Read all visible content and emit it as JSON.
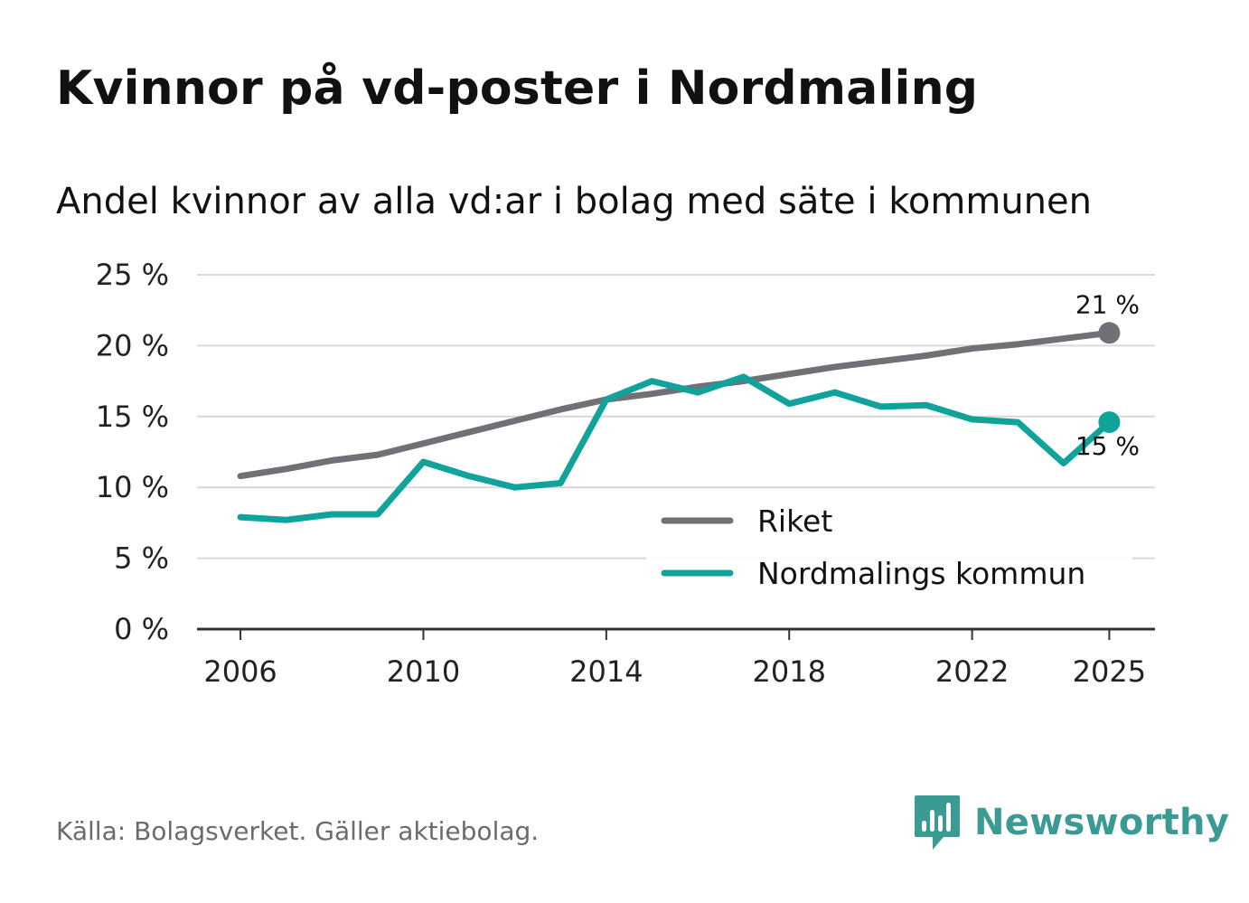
{
  "header": {
    "title": "Kvinnor på vd-poster i Nordmaling",
    "subtitle": "Andel kvinnor av alla vd:ar i bolag med säte i kommunen"
  },
  "footer": {
    "source": "Källa: Bolagsverket. Gäller aktiebolag.",
    "brand": "Newsworthy"
  },
  "colors": {
    "riket": "#707076",
    "kommun": "#10a39b",
    "grid": "#d9d9d9",
    "axis": "#333333",
    "brand": "#3a9a94"
  },
  "chart_data": {
    "type": "line",
    "title": "Kvinnor på vd-poster i Nordmaling",
    "subtitle": "Andel kvinnor av alla vd:ar i bolag med säte i kommunen",
    "xlabel": "",
    "ylabel": "",
    "x": [
      2006,
      2007,
      2008,
      2009,
      2010,
      2011,
      2012,
      2013,
      2014,
      2015,
      2016,
      2017,
      2018,
      2019,
      2020,
      2021,
      2022,
      2023,
      2024,
      2025
    ],
    "xlim": [
      2005.05,
      2026
    ],
    "ylim": [
      0,
      25
    ],
    "x_ticks": [
      2006,
      2010,
      2014,
      2018,
      2022,
      2025
    ],
    "x_tick_labels": [
      "2006",
      "2010",
      "2014",
      "2018",
      "2022",
      "2025"
    ],
    "y_ticks": [
      0,
      5,
      10,
      15,
      20,
      25
    ],
    "y_tick_labels": [
      "0 %",
      "5 %",
      "10 %",
      "15 %",
      "20 %",
      "25 %"
    ],
    "grid": true,
    "legend_position": "bottom-right",
    "series": [
      {
        "name": "Riket",
        "color": "#707076",
        "values": [
          10.8,
          11.3,
          11.9,
          12.3,
          13.1,
          13.9,
          14.7,
          15.5,
          16.2,
          16.6,
          17.1,
          17.5,
          18.0,
          18.5,
          18.9,
          19.3,
          19.8,
          20.1,
          20.5,
          20.9
        ],
        "end_label": "21 %"
      },
      {
        "name": "Nordmalings kommun",
        "color": "#10a39b",
        "values": [
          7.9,
          7.7,
          8.1,
          8.1,
          11.8,
          10.8,
          10.0,
          10.3,
          16.2,
          17.5,
          16.7,
          17.8,
          15.9,
          16.7,
          15.7,
          15.8,
          14.8,
          14.6,
          11.7,
          14.6
        ],
        "end_label": "15 %"
      }
    ]
  }
}
